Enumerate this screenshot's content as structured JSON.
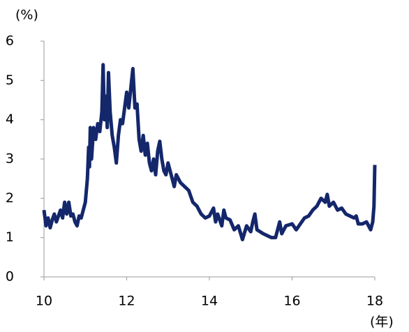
{
  "chart_data": {
    "type": "line",
    "y_label": "(%)",
    "x_label": "(年)",
    "xlim": [
      10,
      18
    ],
    "xticks": [
      10,
      12,
      14,
      16,
      18
    ],
    "ylim": [
      0,
      6
    ],
    "yticks": [
      0,
      1,
      2,
      3,
      4,
      5,
      6
    ],
    "grid": false,
    "series": [
      {
        "color": "#14276b",
        "x": [
          10.0,
          10.05,
          10.1,
          10.15,
          10.2,
          10.25,
          10.3,
          10.35,
          10.4,
          10.45,
          10.5,
          10.55,
          10.6,
          10.65,
          10.7,
          10.75,
          10.8,
          10.85,
          10.9,
          10.95,
          11.0,
          11.05,
          11.08,
          11.1,
          11.12,
          11.15,
          11.2,
          11.25,
          11.3,
          11.35,
          11.4,
          11.43,
          11.46,
          11.5,
          11.53,
          11.56,
          11.6,
          11.65,
          11.7,
          11.75,
          11.8,
          11.85,
          11.9,
          11.95,
          12.0,
          12.05,
          12.1,
          12.15,
          12.2,
          12.25,
          12.3,
          12.35,
          12.4,
          12.45,
          12.5,
          12.55,
          12.6,
          12.65,
          12.7,
          12.75,
          12.8,
          12.85,
          12.9,
          12.95,
          13.0,
          13.05,
          13.1,
          13.15,
          13.2,
          13.3,
          13.4,
          13.5,
          13.6,
          13.7,
          13.8,
          13.9,
          14.0,
          14.1,
          14.15,
          14.2,
          14.3,
          14.35,
          14.4,
          14.5,
          14.6,
          14.7,
          14.8,
          14.9,
          15.0,
          15.05,
          15.1,
          15.15,
          15.3,
          15.5,
          15.6,
          15.7,
          15.75,
          15.85,
          16.0,
          16.1,
          16.2,
          16.3,
          16.4,
          16.5,
          16.6,
          16.7,
          16.8,
          16.85,
          16.9,
          17.0,
          17.1,
          17.2,
          17.3,
          17.4,
          17.5,
          17.55,
          17.6,
          17.7,
          17.8,
          17.9,
          17.95,
          17.98,
          18.0
        ],
        "values": [
          1.7,
          1.3,
          1.5,
          1.25,
          1.45,
          1.6,
          1.4,
          1.55,
          1.7,
          1.5,
          1.9,
          1.6,
          1.9,
          1.55,
          1.6,
          1.4,
          1.3,
          1.55,
          1.5,
          1.7,
          1.9,
          2.5,
          3.3,
          2.8,
          3.8,
          3.0,
          3.8,
          3.5,
          3.9,
          3.7,
          4.2,
          5.4,
          4.0,
          4.6,
          3.8,
          5.2,
          4.2,
          3.6,
          3.3,
          2.9,
          3.6,
          4.0,
          3.9,
          4.3,
          4.7,
          4.3,
          4.8,
          5.3,
          4.3,
          4.4,
          3.5,
          3.2,
          3.6,
          3.1,
          3.4,
          2.9,
          2.7,
          3.0,
          2.6,
          3.2,
          3.45,
          3.0,
          2.7,
          2.6,
          2.9,
          2.7,
          2.5,
          2.3,
          2.6,
          2.4,
          2.3,
          2.2,
          1.9,
          1.8,
          1.6,
          1.5,
          1.55,
          1.75,
          1.4,
          1.6,
          1.3,
          1.7,
          1.5,
          1.45,
          1.2,
          1.3,
          0.95,
          1.3,
          1.15,
          1.4,
          1.6,
          1.2,
          1.1,
          1.0,
          1.0,
          1.4,
          1.1,
          1.3,
          1.35,
          1.2,
          1.35,
          1.5,
          1.55,
          1.7,
          1.8,
          2.0,
          1.9,
          2.1,
          1.8,
          1.9,
          1.7,
          1.75,
          1.6,
          1.55,
          1.5,
          1.55,
          1.35,
          1.35,
          1.4,
          1.2,
          1.4,
          1.8,
          2.85
        ]
      }
    ]
  }
}
